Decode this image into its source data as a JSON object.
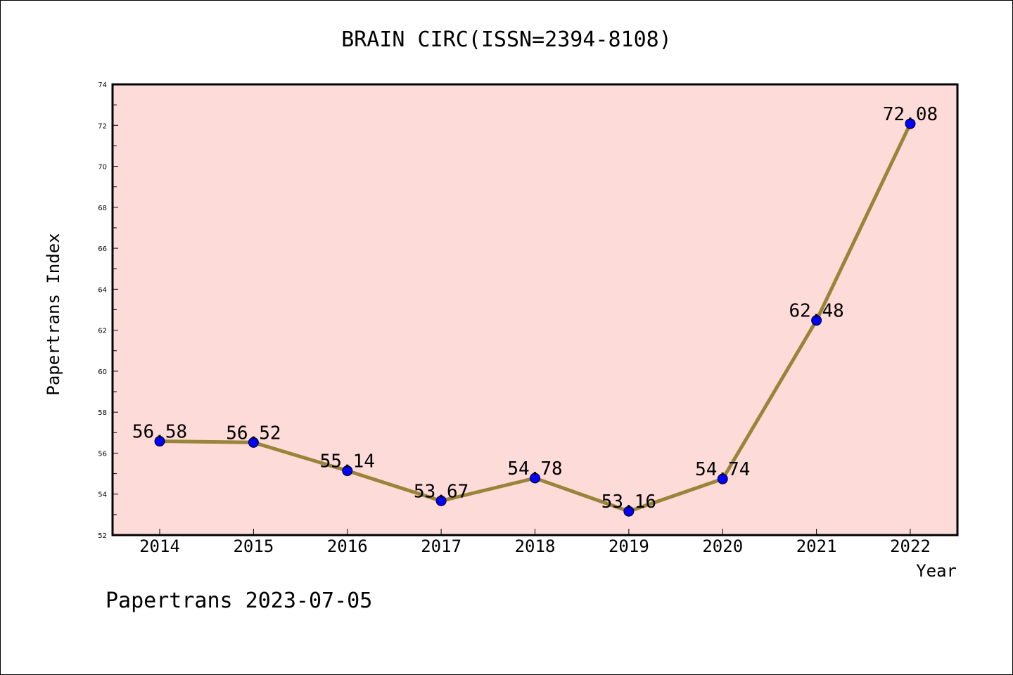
{
  "chart_data": {
    "type": "line",
    "title": "BRAIN CIRC(ISSN=2394-8108)",
    "xlabel": "Year",
    "ylabel": "Papertrans Index",
    "categories": [
      "2014",
      "2015",
      "2016",
      "2017",
      "2018",
      "2019",
      "2020",
      "2021",
      "2022"
    ],
    "series": [
      {
        "values": [
          56.58,
          56.52,
          55.14,
          53.67,
          54.78,
          53.16,
          54.74,
          62.48,
          72.08
        ],
        "data_labels": [
          "56.58",
          "56.52",
          "55.14",
          "53.67",
          "54.78",
          "53.16",
          "54.74",
          "62.48",
          "72.08"
        ]
      }
    ],
    "ylim": [
      52,
      74
    ],
    "yticks": [
      "52",
      "54",
      "56",
      "58",
      "60",
      "62",
      "64",
      "66",
      "68",
      "70",
      "72",
      "74"
    ],
    "grid": false,
    "colors": {
      "plot_background": "#fddbd8",
      "line": "#998439",
      "marker": "#0000ff",
      "marker_edge": "#000000"
    }
  },
  "footer": {
    "text": "Papertrans 2023-07-05"
  }
}
